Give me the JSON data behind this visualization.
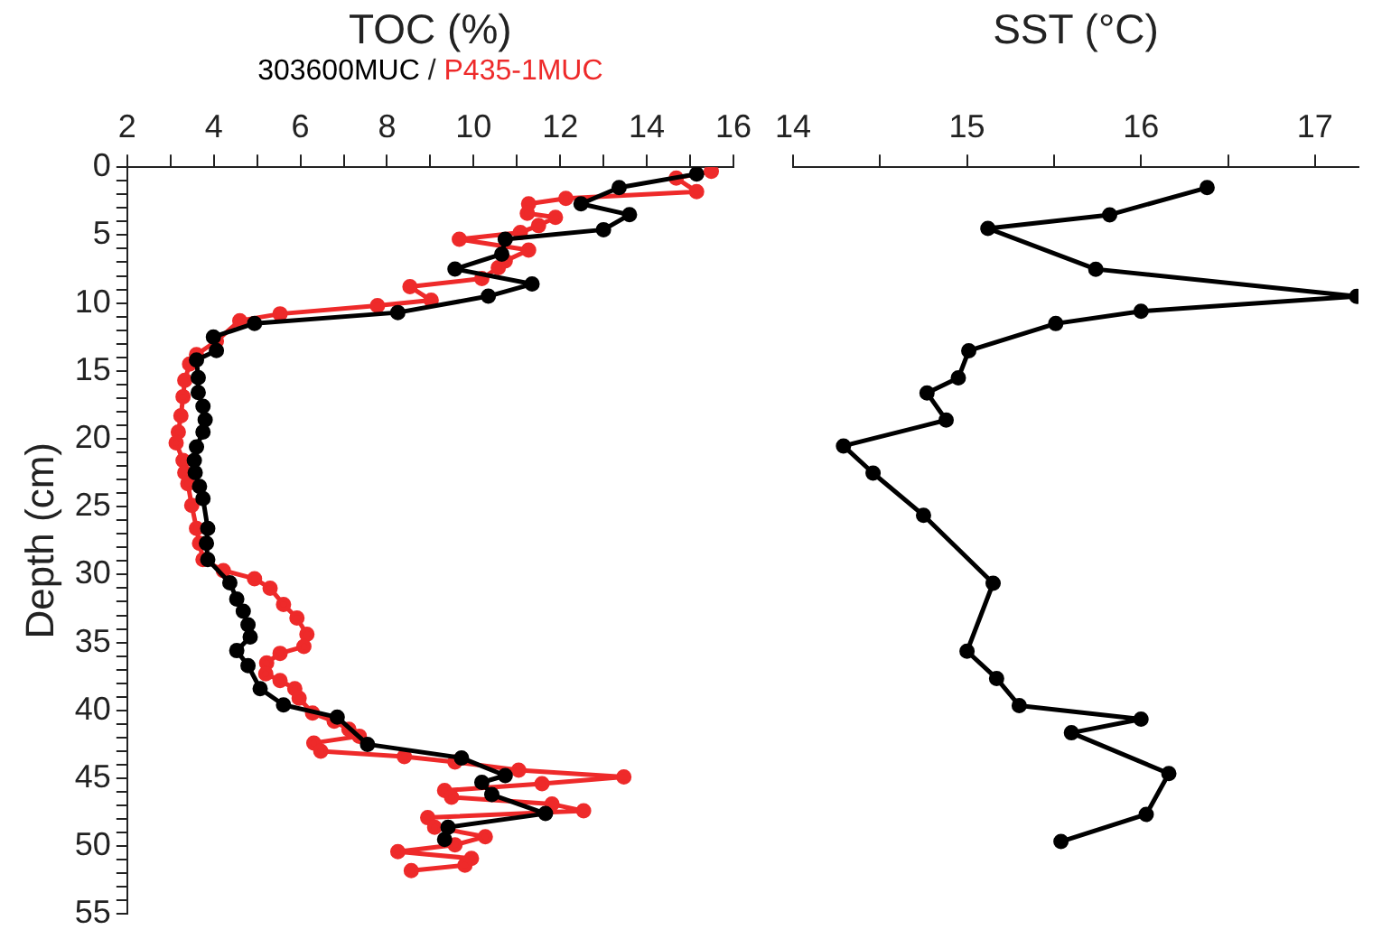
{
  "chart_data": [
    {
      "type": "line",
      "xlabel": "TOC (%)",
      "annotations": [
        "/"
      ],
      "ylabel": "Depth (cm)",
      "legend": "top",
      "marker": "circle",
      "line_style": "solid",
      "xlim": [
        2,
        16
      ],
      "xticks": [
        2,
        {
          "value": 3,
          "label": null
        },
        4,
        {
          "value": 5,
          "label": null
        },
        6,
        {
          "value": 7,
          "label": null
        },
        8,
        {
          "value": 9,
          "label": null
        },
        10,
        {
          "value": 11,
          "label": null
        },
        12,
        {
          "value": 13,
          "label": null
        },
        14,
        {
          "value": 15,
          "label": null
        },
        16
      ],
      "ylim": [
        55,
        0
      ],
      "yticks": [
        0,
        {
          "value": 1,
          "label": null
        },
        {
          "value": 2,
          "label": null
        },
        {
          "value": 3,
          "label": null
        },
        {
          "value": 4,
          "label": null
        },
        5,
        {
          "value": 6,
          "label": null
        },
        {
          "value": 7,
          "label": null
        },
        {
          "value": 8,
          "label": null
        },
        {
          "value": 9,
          "label": null
        },
        10,
        {
          "value": 11,
          "label": null
        },
        {
          "value": 12,
          "label": null
        },
        {
          "value": 13,
          "label": null
        },
        {
          "value": 14,
          "label": null
        },
        15,
        {
          "value": 16,
          "label": null
        },
        {
          "value": 17,
          "label": null
        },
        {
          "value": 18,
          "label": null
        },
        {
          "value": 19,
          "label": null
        },
        20,
        {
          "value": 21,
          "label": null
        },
        {
          "value": 22,
          "label": null
        },
        {
          "value": 23,
          "label": null
        },
        {
          "value": 24,
          "label": null
        },
        25,
        {
          "value": 26,
          "label": null
        },
        {
          "value": 27,
          "label": null
        },
        {
          "value": 28,
          "label": null
        },
        {
          "value": 29,
          "label": null
        },
        30,
        {
          "value": 31,
          "label": null
        },
        {
          "value": 32,
          "label": null
        },
        {
          "value": 33,
          "label": null
        },
        {
          "value": 34,
          "label": null
        },
        35,
        {
          "value": 36,
          "label": null
        },
        {
          "value": 37,
          "label": null
        },
        {
          "value": 38,
          "label": null
        },
        {
          "value": 39,
          "label": null
        },
        40,
        {
          "value": 41,
          "label": null
        },
        {
          "value": 42,
          "label": null
        },
        {
          "value": 43,
          "label": null
        },
        {
          "value": 44,
          "label": null
        },
        45,
        {
          "value": 46,
          "label": null
        },
        {
          "value": 47,
          "label": null
        },
        {
          "value": 48,
          "label": null
        },
        {
          "value": 49,
          "label": null
        },
        50,
        {
          "value": 51,
          "label": null
        },
        {
          "value": 52,
          "label": null
        },
        {
          "value": 53,
          "label": null
        },
        {
          "value": 54,
          "label": null
        },
        55
      ],
      "series": [
        {
          "name": "303600MUC",
          "color": "#000000",
          "x": [
            15.15,
            13.36,
            12.48,
            13.6,
            13.0,
            10.73,
            10.65,
            9.57,
            11.35,
            10.34,
            8.25,
            4.94,
            3.99,
            4.06,
            3.6,
            3.64,
            3.64,
            3.75,
            3.8,
            3.75,
            3.6,
            3.55,
            3.57,
            3.67,
            3.75,
            3.86,
            3.83,
            3.86,
            4.37,
            4.53,
            4.68,
            4.79,
            4.84,
            4.53,
            4.79,
            5.07,
            5.61,
            6.85,
            7.55,
            9.72,
            10.73,
            10.19,
            10.42,
            11.66,
            9.41,
            9.33
          ],
          "values": [
            0.5,
            1.5,
            2.7,
            3.5,
            4.6,
            5.3,
            6.4,
            7.5,
            8.6,
            9.5,
            10.7,
            11.5,
            12.5,
            13.5,
            14.2,
            15.5,
            16.6,
            17.6,
            18.6,
            19.5,
            20.6,
            21.6,
            22.5,
            23.5,
            24.4,
            26.6,
            27.7,
            28.9,
            30.6,
            31.8,
            32.7,
            33.7,
            34.6,
            35.6,
            36.7,
            38.4,
            39.6,
            40.5,
            42.5,
            43.5,
            44.8,
            45.3,
            46.2,
            47.6,
            48.6,
            49.5
          ]
        },
        {
          "name": "P435-1MUC",
          "color": "#ee2a2a",
          "x": [
            15.49,
            14.68,
            15.15,
            12.13,
            11.27,
            11.24,
            11.89,
            11.5,
            11.08,
            9.67,
            11.27,
            10.73,
            10.57,
            10.19,
            8.53,
            9.02,
            7.78,
            5.53,
            4.6,
            4.06,
            3.6,
            3.44,
            3.33,
            3.29,
            3.24,
            3.18,
            3.13,
            3.29,
            3.33,
            3.4,
            3.49,
            3.6,
            3.67,
            3.75,
            4.22,
            4.94,
            5.3,
            5.61,
            5.92,
            6.15,
            6.08,
            5.53,
            5.22,
            5.2,
            5.53,
            5.87,
            5.97,
            6.28,
            6.78,
            7.12,
            7.36,
            6.31,
            6.47,
            8.4,
            9.57,
            11.04,
            13.47,
            11.58,
            9.33,
            9.49,
            11.81,
            12.54,
            8.94,
            9.1,
            10.27,
            9.57,
            8.25,
            9.95,
            9.8,
            8.56
          ],
          "values": [
            0.3,
            0.8,
            1.8,
            2.3,
            2.7,
            3.4,
            3.7,
            4.3,
            4.8,
            5.3,
            6.1,
            6.9,
            7.4,
            8.2,
            8.8,
            9.8,
            10.2,
            10.8,
            11.3,
            12.8,
            13.8,
            14.5,
            15.7,
            16.9,
            18.3,
            19.5,
            20.3,
            21.6,
            22.5,
            23.3,
            24.9,
            26.6,
            27.7,
            28.9,
            29.7,
            30.3,
            31.0,
            32.2,
            33.2,
            34.4,
            35.3,
            35.8,
            36.5,
            37.3,
            37.8,
            38.4,
            39.1,
            40.2,
            40.8,
            41.4,
            41.9,
            42.4,
            43.0,
            43.4,
            43.8,
            44.4,
            44.9,
            45.4,
            45.9,
            46.4,
            46.9,
            47.4,
            47.9,
            48.6,
            49.3,
            49.9,
            50.4,
            50.9,
            51.4,
            51.8
          ]
        }
      ]
    },
    {
      "type": "line",
      "xlabel": "SST (°C)",
      "marker": "circle",
      "line_style": "solid",
      "tick_labels": "x",
      "xlim": [
        14,
        17.25
      ],
      "xticks": [
        14,
        {
          "value": 14.5,
          "label": null
        },
        15,
        {
          "value": 15.5,
          "label": null
        },
        16,
        {
          "value": 16.5,
          "label": null
        },
        17
      ],
      "ylim": [
        55,
        0
      ],
      "series": [
        {
          "color": "#000000",
          "x": [
            16.38,
            15.82,
            15.12,
            15.74,
            17.24,
            16.0,
            15.51,
            15.01,
            14.95,
            14.77,
            14.88,
            14.29,
            14.46,
            14.75,
            15.15,
            15.0,
            15.17,
            15.3,
            16.0,
            15.6,
            16.16,
            16.03,
            15.54
          ],
          "values": [
            1.5,
            3.5,
            4.5,
            7.5,
            9.5,
            10.6,
            11.5,
            13.5,
            15.5,
            16.6,
            18.6,
            20.5,
            22.5,
            25.6,
            30.6,
            35.6,
            37.6,
            39.6,
            40.6,
            41.6,
            44.6,
            47.6,
            49.6
          ]
        }
      ]
    }
  ]
}
